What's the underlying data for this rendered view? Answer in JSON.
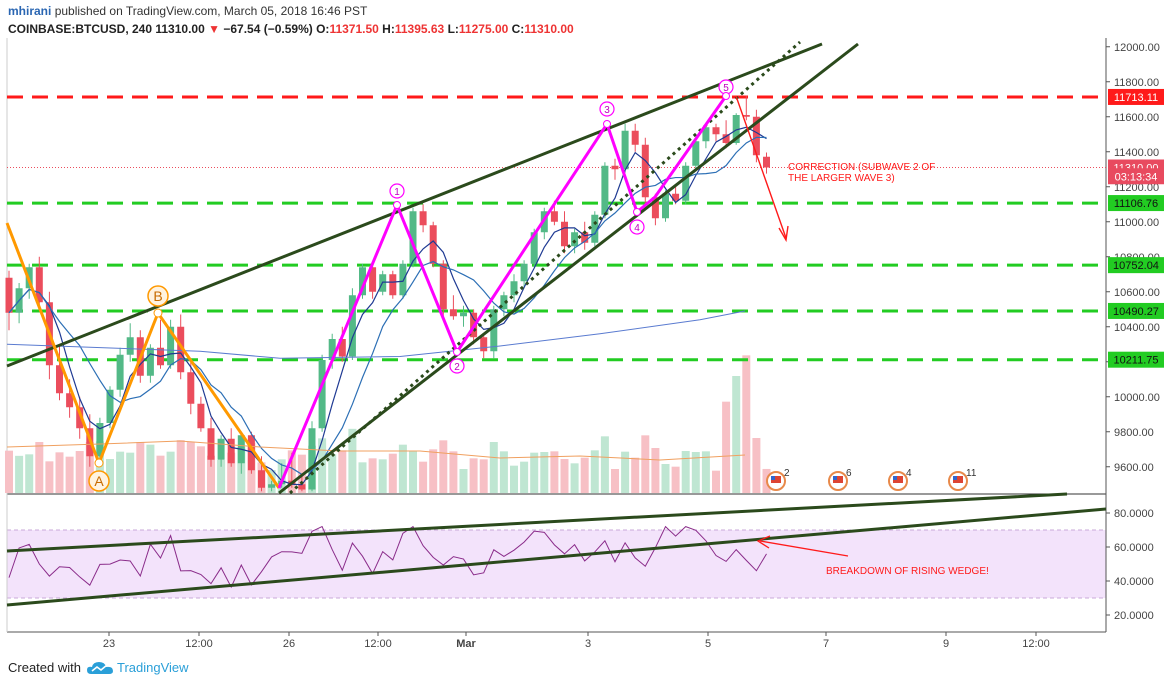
{
  "header": {
    "publisher": "mhirani",
    "published_text": "published on TradingView.com, March 05, 2018 16:46 PST",
    "symbol": "COINBASE:BTCUSD, 240",
    "last": "11310.00",
    "change_arrow": "▼",
    "change": "−67.54 (−0.59%)",
    "o_label": "O:",
    "o_val": "11371.50",
    "h_label": "H:",
    "h_val": "11395.63",
    "l_label": "L:",
    "l_val": "11275.00",
    "c_label": "C:",
    "c_val": "11310.00"
  },
  "footer": {
    "created_with": "Created with",
    "brand": "TradingView"
  },
  "chart_data": [
    {
      "type": "candlestick",
      "title": "COINBASE:BTCUSD, 240",
      "ylim": [
        9450,
        12050
      ],
      "y_ticks": [
        "12000.00",
        "11800.00",
        "11600.00",
        "11400.00",
        "11200.00",
        "11000.00",
        "10800.00",
        "10600.00",
        "10400.00",
        "10200.00",
        "10000.00",
        "9800.00",
        "9600.00"
      ],
      "x_ticks": [
        "23",
        "12:00",
        "26",
        "12:00",
        "Mar",
        "3",
        "5",
        "7",
        "9",
        "12:00"
      ],
      "candles": [
        {
          "o": 10680,
          "h": 10720,
          "l": 10380,
          "c": 10480
        },
        {
          "o": 10480,
          "h": 10650,
          "l": 10420,
          "c": 10620
        },
        {
          "o": 10620,
          "h": 10760,
          "l": 10560,
          "c": 10740
        },
        {
          "o": 10740,
          "h": 10800,
          "l": 10500,
          "c": 10540
        },
        {
          "o": 10540,
          "h": 10600,
          "l": 10100,
          "c": 10180
        },
        {
          "o": 10180,
          "h": 10300,
          "l": 9980,
          "c": 10020
        },
        {
          "o": 10020,
          "h": 10100,
          "l": 9880,
          "c": 9940
        },
        {
          "o": 9940,
          "h": 10000,
          "l": 9760,
          "c": 9820
        },
        {
          "o": 9820,
          "h": 9900,
          "l": 9600,
          "c": 9660
        },
        {
          "o": 9660,
          "h": 9880,
          "l": 9620,
          "c": 9850
        },
        {
          "o": 9850,
          "h": 10060,
          "l": 9820,
          "c": 10040
        },
        {
          "o": 10040,
          "h": 10280,
          "l": 10000,
          "c": 10240
        },
        {
          "o": 10240,
          "h": 10420,
          "l": 10200,
          "c": 10340
        },
        {
          "o": 10340,
          "h": 10380,
          "l": 10080,
          "c": 10120
        },
        {
          "o": 10120,
          "h": 10300,
          "l": 10080,
          "c": 10280
        },
        {
          "o": 10280,
          "h": 10440,
          "l": 10160,
          "c": 10180
        },
        {
          "o": 10180,
          "h": 10440,
          "l": 10160,
          "c": 10400
        },
        {
          "o": 10400,
          "h": 10470,
          "l": 10100,
          "c": 10140
        },
        {
          "o": 10140,
          "h": 10200,
          "l": 9900,
          "c": 9960
        },
        {
          "o": 9960,
          "h": 10000,
          "l": 9800,
          "c": 9820
        },
        {
          "o": 9820,
          "h": 9880,
          "l": 9600,
          "c": 9640
        },
        {
          "o": 9640,
          "h": 9780,
          "l": 9600,
          "c": 9760
        },
        {
          "o": 9760,
          "h": 9820,
          "l": 9600,
          "c": 9620
        },
        {
          "o": 9620,
          "h": 9800,
          "l": 9560,
          "c": 9780
        },
        {
          "o": 9780,
          "h": 9800,
          "l": 9560,
          "c": 9580
        },
        {
          "o": 9580,
          "h": 9660,
          "l": 9460,
          "c": 9480
        },
        {
          "o": 9480,
          "h": 9520,
          "l": 9460,
          "c": 9500
        },
        {
          "o": 9500,
          "h": 9620,
          "l": 9480,
          "c": 9520
        },
        {
          "o": 9520,
          "h": 9680,
          "l": 9480,
          "c": 9500
        },
        {
          "o": 9500,
          "h": 9560,
          "l": 9460,
          "c": 9470
        },
        {
          "o": 9470,
          "h": 9860,
          "l": 9460,
          "c": 9820
        },
        {
          "o": 9820,
          "h": 10240,
          "l": 9800,
          "c": 10210
        },
        {
          "o": 10210,
          "h": 10360,
          "l": 10160,
          "c": 10330
        },
        {
          "o": 10330,
          "h": 10400,
          "l": 10200,
          "c": 10230
        },
        {
          "o": 10230,
          "h": 10620,
          "l": 10210,
          "c": 10580
        },
        {
          "o": 10580,
          "h": 10760,
          "l": 10560,
          "c": 10740
        },
        {
          "o": 10740,
          "h": 10760,
          "l": 10560,
          "c": 10600
        },
        {
          "o": 10600,
          "h": 10720,
          "l": 10580,
          "c": 10700
        },
        {
          "o": 10700,
          "h": 10720,
          "l": 10560,
          "c": 10580
        },
        {
          "o": 10580,
          "h": 10780,
          "l": 10560,
          "c": 10760
        },
        {
          "o": 10760,
          "h": 11080,
          "l": 10740,
          "c": 11060
        },
        {
          "o": 11060,
          "h": 11100,
          "l": 10940,
          "c": 10980
        },
        {
          "o": 10980,
          "h": 11000,
          "l": 10740,
          "c": 10760
        },
        {
          "o": 10760,
          "h": 10780,
          "l": 10460,
          "c": 10500
        },
        {
          "o": 10500,
          "h": 10580,
          "l": 10440,
          "c": 10460
        },
        {
          "o": 10460,
          "h": 10520,
          "l": 10400,
          "c": 10480
        },
        {
          "o": 10480,
          "h": 10500,
          "l": 10300,
          "c": 10340
        },
        {
          "o": 10340,
          "h": 10360,
          "l": 10220,
          "c": 10260
        },
        {
          "o": 10260,
          "h": 10520,
          "l": 10220,
          "c": 10500
        },
        {
          "o": 10500,
          "h": 10600,
          "l": 10460,
          "c": 10580
        },
        {
          "o": 10580,
          "h": 10700,
          "l": 10540,
          "c": 10660
        },
        {
          "o": 10660,
          "h": 10780,
          "l": 10620,
          "c": 10760
        },
        {
          "o": 10760,
          "h": 10960,
          "l": 10740,
          "c": 10940
        },
        {
          "o": 10940,
          "h": 11080,
          "l": 10900,
          "c": 11060
        },
        {
          "o": 11060,
          "h": 11120,
          "l": 10980,
          "c": 11000
        },
        {
          "o": 11000,
          "h": 11060,
          "l": 10820,
          "c": 10860
        },
        {
          "o": 10860,
          "h": 10960,
          "l": 10820,
          "c": 10940
        },
        {
          "o": 10940,
          "h": 11000,
          "l": 10840,
          "c": 10880
        },
        {
          "o": 10880,
          "h": 11060,
          "l": 10860,
          "c": 11040
        },
        {
          "o": 11040,
          "h": 11340,
          "l": 11020,
          "c": 11320
        },
        {
          "o": 11320,
          "h": 11360,
          "l": 11240,
          "c": 11300
        },
        {
          "o": 11300,
          "h": 11560,
          "l": 11280,
          "c": 11520
        },
        {
          "o": 11520,
          "h": 11560,
          "l": 11400,
          "c": 11440
        },
        {
          "o": 11440,
          "h": 11480,
          "l": 11100,
          "c": 11140
        },
        {
          "o": 11140,
          "h": 11160,
          "l": 10980,
          "c": 11020
        },
        {
          "o": 11020,
          "h": 11180,
          "l": 11000,
          "c": 11160
        },
        {
          "o": 11160,
          "h": 11200,
          "l": 11100,
          "c": 11120
        },
        {
          "o": 11120,
          "h": 11340,
          "l": 11100,
          "c": 11320
        },
        {
          "o": 11320,
          "h": 11480,
          "l": 11300,
          "c": 11460
        },
        {
          "o": 11460,
          "h": 11560,
          "l": 11420,
          "c": 11540
        },
        {
          "o": 11540,
          "h": 11560,
          "l": 11460,
          "c": 11500
        },
        {
          "o": 11500,
          "h": 11580,
          "l": 11420,
          "c": 11450
        },
        {
          "o": 11450,
          "h": 11620,
          "l": 11440,
          "c": 11610
        },
        {
          "o": 11610,
          "h": 11720,
          "l": 11580,
          "c": 11600
        },
        {
          "o": 11600,
          "h": 11640,
          "l": 11340,
          "c": 11380
        },
        {
          "o": 11371.5,
          "h": 11395.63,
          "l": 11275,
          "c": 11310
        }
      ],
      "price_labels": [
        {
          "value": 11713.11,
          "text": "11713.11",
          "color": "#ff1a1a"
        },
        {
          "value": 11310.0,
          "text": "11310.00",
          "color": "#e84a5f"
        },
        {
          "value": 11260.0,
          "text": "03:13:34",
          "color": "#e84a5f"
        },
        {
          "value": 11106.76,
          "text": "11106.76",
          "color": "#22cc22"
        },
        {
          "value": 10752.04,
          "text": "10752.04",
          "color": "#22cc22"
        },
        {
          "value": 10490.27,
          "text": "10490.27",
          "color": "#22cc22"
        },
        {
          "value": 10211.75,
          "text": "10211.75",
          "color": "#22cc22"
        }
      ],
      "horizontal_lines": [
        {
          "value": 11713.11,
          "color": "#ff1a1a"
        },
        {
          "value": 11106.76,
          "color": "#22cc22"
        },
        {
          "value": 10752.04,
          "color": "#22cc22"
        },
        {
          "value": 10490.27,
          "color": "#22cc22"
        },
        {
          "value": 10211.75,
          "color": "#22cc22"
        }
      ],
      "wave_labels": {
        "A": "A",
        "B": "B",
        "w1": "1",
        "w2": "2",
        "w3": "3",
        "w4": "4",
        "w5": "5"
      },
      "annotations": {
        "correction": [
          "CORRECTION (SUBWAVE 2 OF",
          "THE LARGER WAVE 3)"
        ]
      },
      "event_flags": [
        "2",
        "6",
        "4",
        "11"
      ]
    },
    {
      "type": "line",
      "indicator": "RSI",
      "ylim": [
        10,
        90
      ],
      "y_ticks": [
        "80.0000",
        "60.0000",
        "40.0000",
        "20.0000"
      ],
      "annotations": {
        "breakdown": "BREAKDOWN OF RISING WEDGE!"
      }
    }
  ],
  "colors": {
    "up": "#53b987",
    "down": "#eb4d5c",
    "wave_magenta": "#ff00ff",
    "wave_orange": "#ff9900",
    "trendline": "#2b4a1c",
    "annotation_red": "#ff1a1a"
  }
}
